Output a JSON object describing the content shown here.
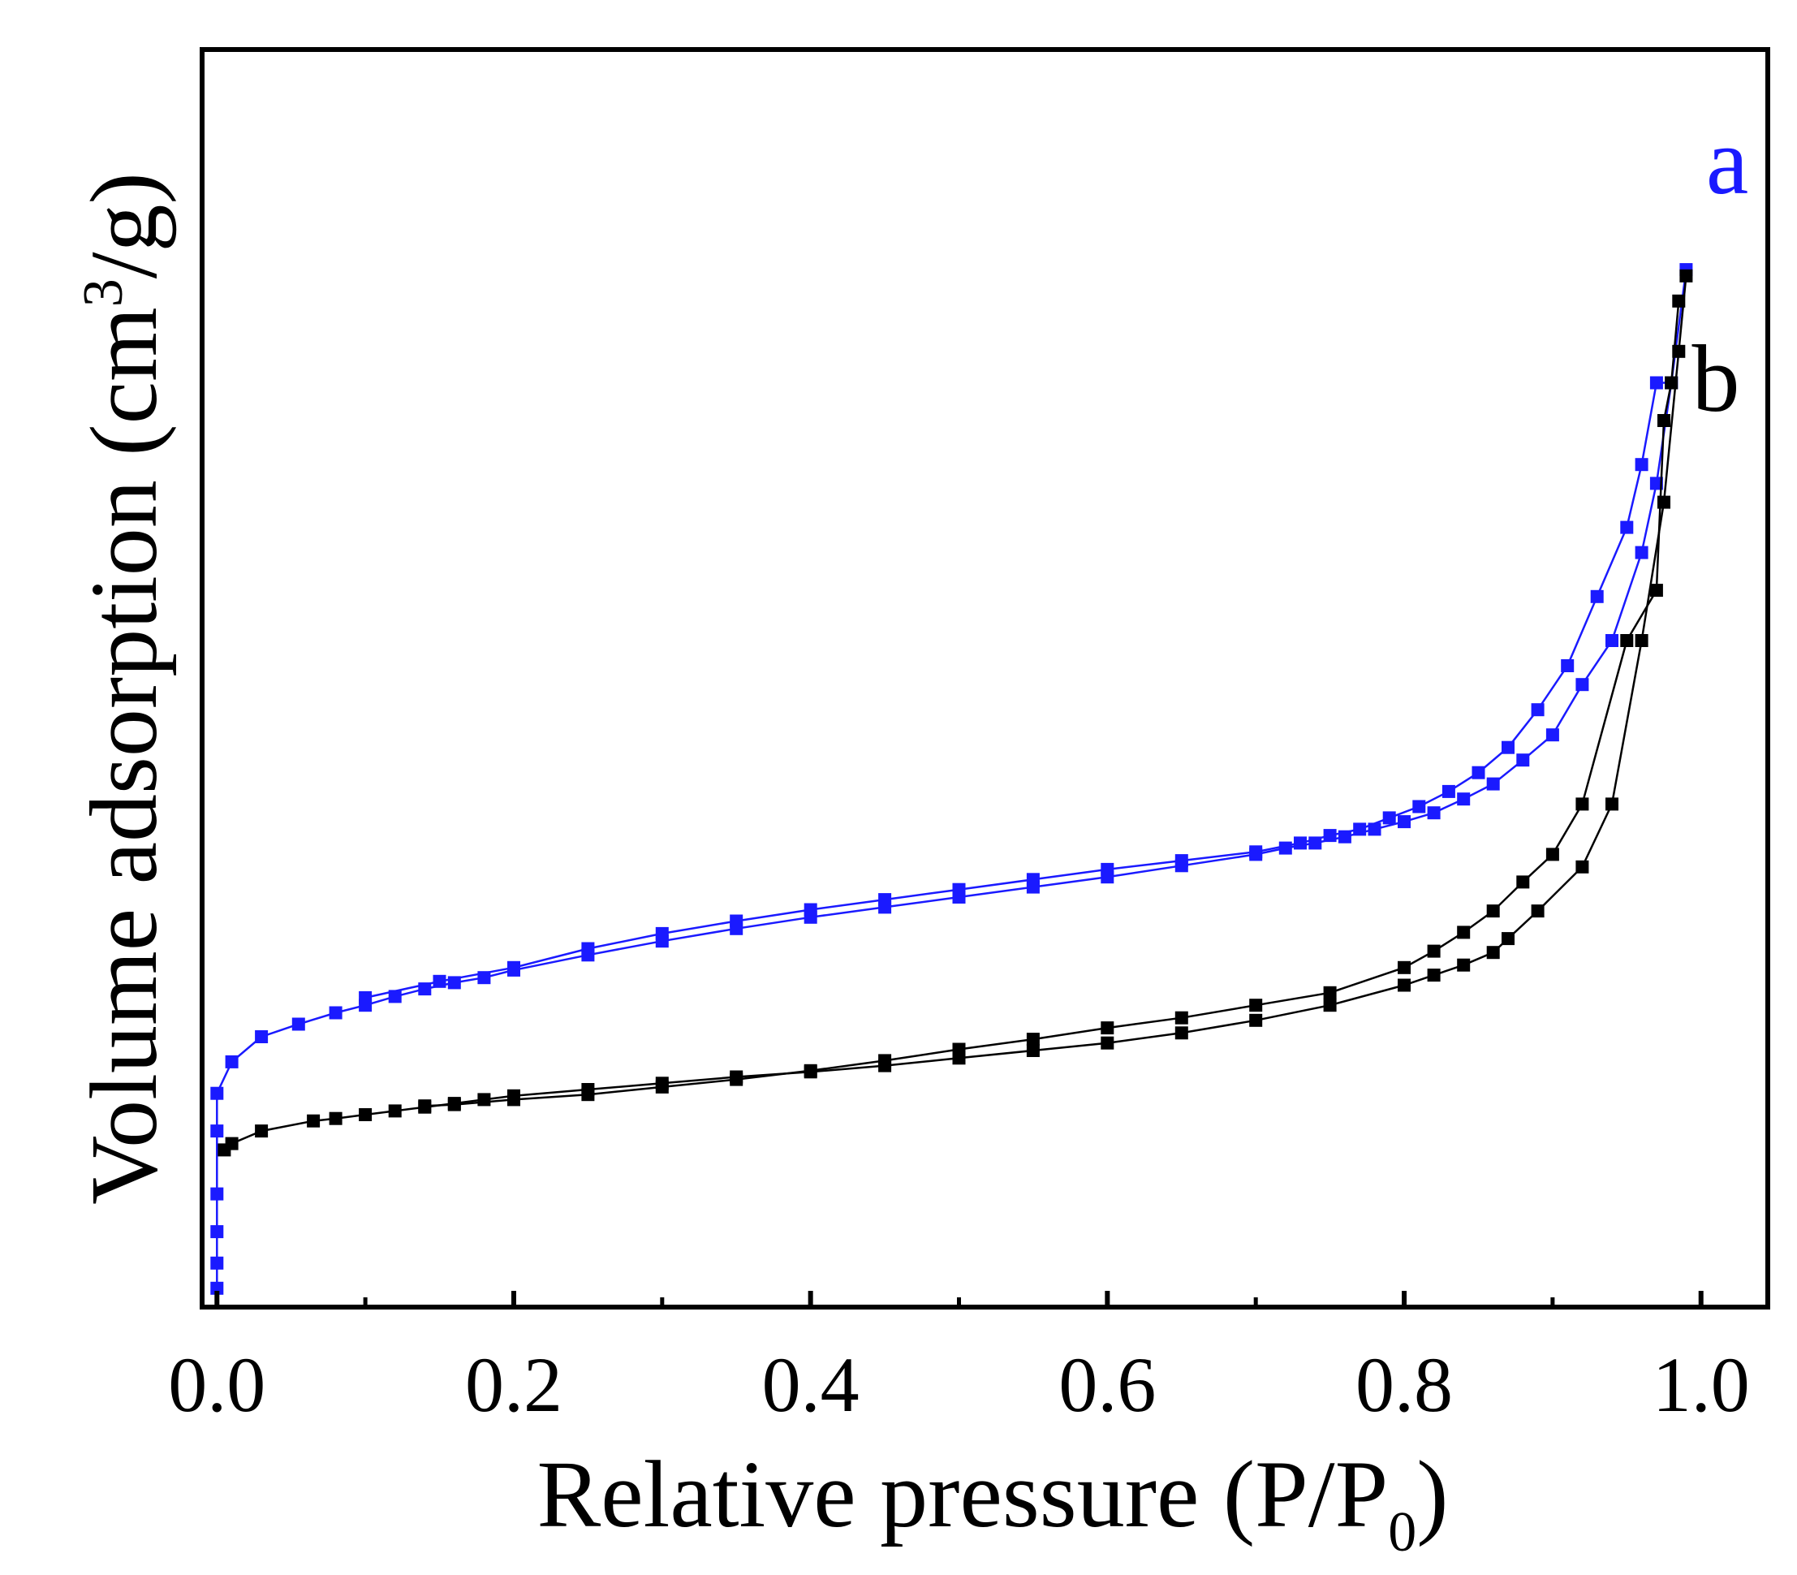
{
  "chart_data": {
    "type": "line",
    "title": "",
    "xlabel": "Relative pressure (P/P",
    "xlabel_sub": "0",
    "xlabel_tail": ")",
    "ylabel": "Volume adsorption (cm",
    "ylabel_sup": "3",
    "ylabel_tail": "/g)",
    "xlim": [
      -0.01,
      1.045
    ],
    "ylim": [
      0,
      100
    ],
    "y_ticks_shown": false,
    "grid": false,
    "xticks": [
      0.0,
      0.2,
      0.4,
      0.6,
      0.8,
      1.0
    ],
    "xtick_labels": [
      "0.0",
      "0.2",
      "0.4",
      "0.6",
      "0.8",
      "1.0"
    ],
    "series": [
      {
        "name": "a",
        "label": "a",
        "color": "#1a1aff",
        "adsorption": {
          "x": [
            0.0,
            0.0,
            0.0,
            0.0,
            0.0,
            0.0,
            0.01,
            0.03,
            0.055,
            0.08,
            0.1,
            0.12,
            0.14,
            0.16,
            0.18,
            0.2,
            0.25,
            0.3,
            0.35,
            0.4,
            0.45,
            0.5,
            0.55,
            0.6,
            0.65,
            0.7,
            0.72,
            0.74,
            0.76,
            0.78,
            0.8,
            0.82,
            0.84,
            0.86,
            0.88,
            0.9,
            0.92,
            0.94,
            0.96,
            0.97,
            0.98,
            0.99
          ],
          "y": [
            1.5,
            3.5,
            6.0,
            9.0,
            14.0,
            17.0,
            19.5,
            21.5,
            22.5,
            23.4,
            24.0,
            24.7,
            25.3,
            25.8,
            26.2,
            26.8,
            28.0,
            29.1,
            30.1,
            31.0,
            31.8,
            32.6,
            33.4,
            34.2,
            35.1,
            36.0,
            36.5,
            36.9,
            37.4,
            38.0,
            38.6,
            39.3,
            40.4,
            41.6,
            43.5,
            45.5,
            49.5,
            53.0,
            60.0,
            65.5,
            73.5,
            82.5
          ]
        },
        "desorption": {
          "x": [
            0.98,
            0.97,
            0.96,
            0.95,
            0.93,
            0.91,
            0.89,
            0.87,
            0.85,
            0.83,
            0.81,
            0.79,
            0.77,
            0.75,
            0.73,
            0.7,
            0.65,
            0.6,
            0.55,
            0.5,
            0.45,
            0.4,
            0.35,
            0.3,
            0.25,
            0.2,
            0.15,
            0.1
          ],
          "y": [
            73.5,
            73.5,
            67.0,
            62.0,
            56.5,
            51.0,
            47.5,
            44.5,
            42.5,
            41.0,
            39.8,
            38.9,
            38.0,
            37.5,
            36.9,
            36.2,
            35.5,
            34.8,
            34.0,
            33.2,
            32.4,
            31.6,
            30.7,
            29.7,
            28.5,
            27.0,
            25.9,
            24.6
          ]
        }
      },
      {
        "name": "b",
        "label": "b",
        "color": "#000000",
        "adsorption": {
          "x": [
            0.005,
            0.01,
            0.03,
            0.065,
            0.08,
            0.1,
            0.12,
            0.14,
            0.16,
            0.18,
            0.2,
            0.25,
            0.3,
            0.35,
            0.4,
            0.45,
            0.5,
            0.55,
            0.6,
            0.65,
            0.7,
            0.75,
            0.8,
            0.82,
            0.84,
            0.86,
            0.87,
            0.89,
            0.92,
            0.94,
            0.96,
            0.975,
            0.985,
            0.99
          ],
          "y": [
            12.5,
            13.0,
            14.0,
            14.8,
            15.0,
            15.3,
            15.6,
            15.9,
            16.2,
            16.5,
            16.8,
            17.3,
            17.8,
            18.3,
            18.7,
            19.2,
            19.8,
            20.4,
            21.0,
            21.8,
            22.8,
            24.0,
            25.6,
            26.4,
            27.2,
            28.2,
            29.3,
            31.5,
            35.0,
            40.0,
            53.0,
            64.0,
            76.0,
            82.0
          ]
        },
        "desorption": {
          "x": [
            0.985,
            0.98,
            0.975,
            0.97,
            0.95,
            0.92,
            0.9,
            0.88,
            0.86,
            0.84,
            0.82,
            0.8,
            0.75,
            0.7,
            0.65,
            0.6,
            0.55,
            0.5,
            0.45,
            0.4,
            0.35,
            0.3,
            0.25,
            0.2,
            0.16,
            0.14
          ],
          "y": [
            80.0,
            73.5,
            70.5,
            57.0,
            53.0,
            40.0,
            36.0,
            33.8,
            31.5,
            29.8,
            28.3,
            27.0,
            25.0,
            24.0,
            23.0,
            22.2,
            21.3,
            20.5,
            19.6,
            18.8,
            18.1,
            17.5,
            16.9,
            16.5,
            16.1,
            16.0
          ]
        }
      }
    ]
  }
}
